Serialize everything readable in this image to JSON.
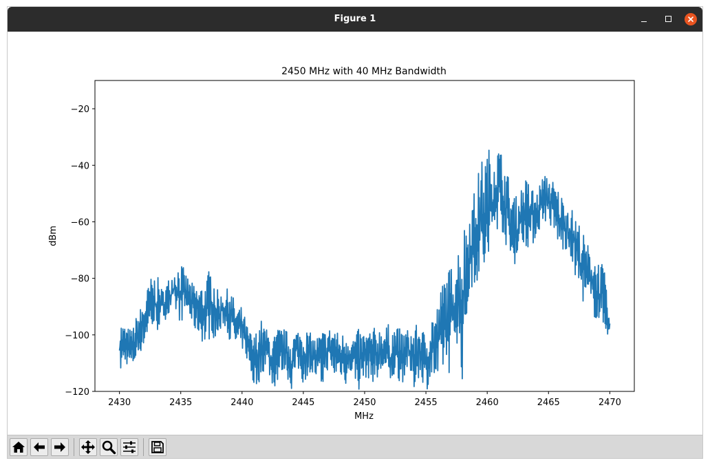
{
  "window": {
    "title": "Figure 1"
  },
  "toolbar": {
    "buttons": [
      {
        "name": "home",
        "icon": "home-icon"
      },
      {
        "name": "back",
        "icon": "arrow-left-icon"
      },
      {
        "name": "forward",
        "icon": "arrow-right-icon"
      },
      {
        "name": "pan",
        "icon": "move-icon"
      },
      {
        "name": "zoom",
        "icon": "zoom-icon"
      },
      {
        "name": "configure-subplots",
        "icon": "sliders-icon"
      },
      {
        "name": "save",
        "icon": "save-icon"
      }
    ]
  },
  "colors": {
    "line": "#1f77b4",
    "titlebar": "#2c2c2c",
    "close": "#e95420"
  },
  "chart_data": {
    "type": "line",
    "title": "2450 MHz with 40 MHz Bandwidth",
    "xlabel": "MHz",
    "ylabel": "dBm",
    "xlim": [
      2428,
      2472
    ],
    "ylim": [
      -120,
      -10
    ],
    "xticks": [
      2430,
      2435,
      2440,
      2445,
      2450,
      2455,
      2460,
      2465,
      2470
    ],
    "xtick_labels": [
      "2430",
      "2435",
      "2440",
      "2445",
      "2450",
      "2455",
      "2460",
      "2465",
      "2470"
    ],
    "yticks": [
      -120,
      -100,
      -80,
      -60,
      -40,
      -20
    ],
    "ytick_labels": [
      "−120",
      "−100",
      "−80",
      "−60",
      "−40",
      "−20"
    ],
    "grid": false,
    "series": [
      {
        "color": "#1f77b4",
        "x": [
          2430.0,
          2430.5,
          2431.0,
          2431.5,
          2432.0,
          2432.5,
          2433.0,
          2433.5,
          2434.0,
          2434.5,
          2435.0,
          2435.5,
          2436.0,
          2436.5,
          2437.0,
          2437.5,
          2438.0,
          2438.5,
          2439.0,
          2439.5,
          2440.0,
          2440.5,
          2441.0,
          2441.5,
          2442.0,
          2442.5,
          2443.0,
          2443.5,
          2444.0,
          2444.5,
          2445.0,
          2445.5,
          2446.0,
          2446.5,
          2447.0,
          2447.5,
          2448.0,
          2448.5,
          2449.0,
          2449.5,
          2450.0,
          2450.5,
          2451.0,
          2451.5,
          2452.0,
          2452.5,
          2453.0,
          2453.5,
          2454.0,
          2454.5,
          2455.0,
          2455.5,
          2456.0,
          2456.5,
          2457.0,
          2457.5,
          2458.0,
          2458.5,
          2459.0,
          2459.5,
          2460.0,
          2460.5,
          2461.0,
          2461.5,
          2462.0,
          2462.5,
          2463.0,
          2463.5,
          2464.0,
          2464.5,
          2465.0,
          2465.5,
          2466.0,
          2466.5,
          2467.0,
          2467.5,
          2468.0,
          2468.5,
          2469.0,
          2469.5,
          2470.0
        ],
        "min": [
          -115,
          -110,
          -113,
          -108,
          -104,
          -98,
          -100,
          -95,
          -94,
          -92,
          -96,
          -92,
          -98,
          -100,
          -105,
          -100,
          -103,
          -96,
          -102,
          -105,
          -105,
          -110,
          -120,
          -116,
          -110,
          -120,
          -116,
          -112,
          -120,
          -112,
          -118,
          -113,
          -116,
          -120,
          -112,
          -116,
          -114,
          -118,
          -113,
          -120,
          -115,
          -116,
          -118,
          -113,
          -120,
          -114,
          -118,
          -112,
          -120,
          -114,
          -120,
          -116,
          -120,
          -112,
          -114,
          -102,
          -118,
          -88,
          -82,
          -80,
          -82,
          -68,
          -60,
          -68,
          -78,
          -72,
          -68,
          -70,
          -66,
          -60,
          -60,
          -66,
          -70,
          -72,
          -76,
          -85,
          -90,
          -92,
          -96,
          -98,
          -101
        ],
        "max": [
          -94,
          -97,
          -98,
          -92,
          -88,
          -80,
          -78,
          -84,
          -80,
          -76,
          -74,
          -79,
          -82,
          -83,
          -80,
          -75,
          -84,
          -86,
          -82,
          -90,
          -90,
          -98,
          -100,
          -94,
          -98,
          -101,
          -97,
          -98,
          -100,
          -98,
          -97,
          -99,
          -101,
          -98,
          -98,
          -96,
          -101,
          -97,
          -101,
          -98,
          -99,
          -98,
          -97,
          -97,
          -96,
          -97,
          -98,
          -98,
          -97,
          -96,
          -100,
          -92,
          -88,
          -78,
          -76,
          -70,
          -62,
          -55,
          -48,
          -38,
          -34,
          -33,
          -33,
          -40,
          -48,
          -52,
          -44,
          -46,
          -50,
          -44,
          -43,
          -46,
          -50,
          -52,
          -56,
          -60,
          -66,
          -70,
          -73,
          -75,
          -96
        ]
      }
    ]
  }
}
